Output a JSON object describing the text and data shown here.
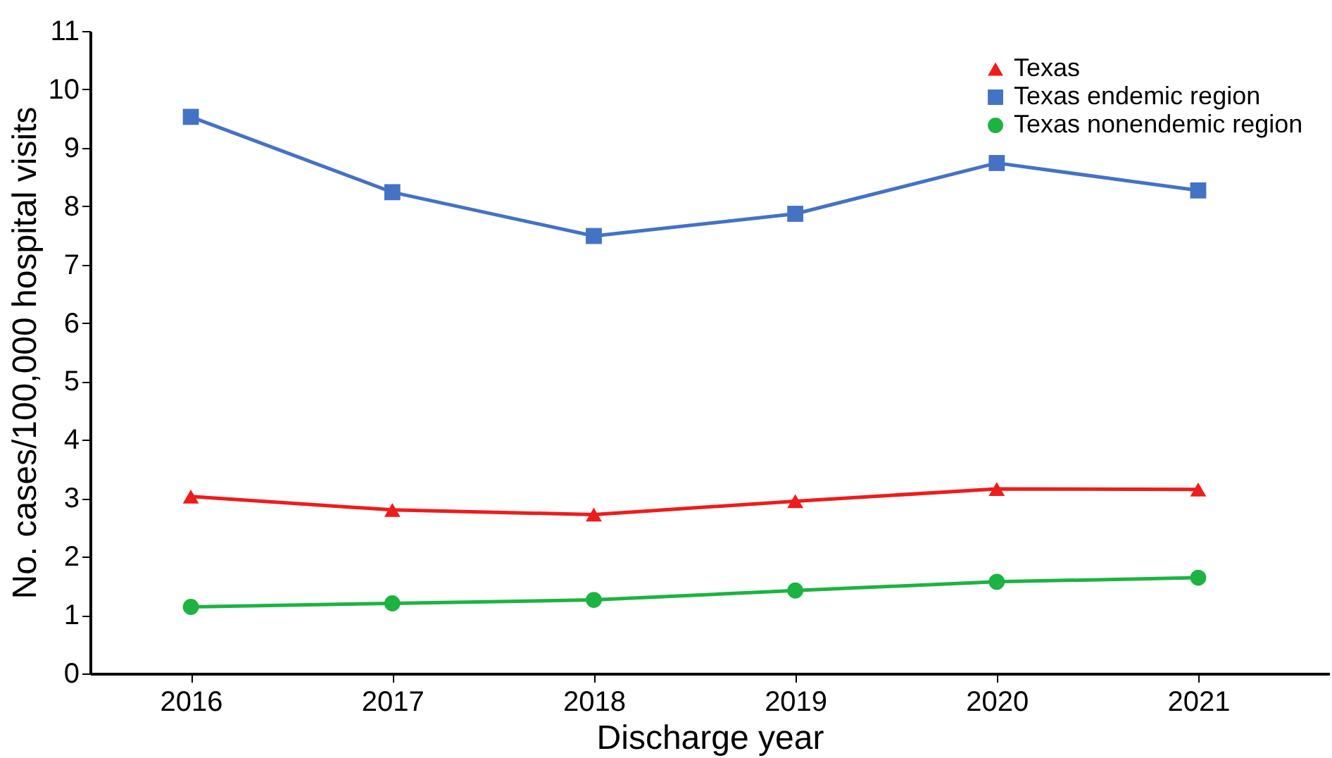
{
  "chart_data": {
    "type": "line",
    "xlabel": "Discharge year",
    "ylabel": "No. cases/100,000 hospital visits",
    "categories": [
      "2016",
      "2017",
      "2018",
      "2019",
      "2020",
      "2021"
    ],
    "series": [
      {
        "name": "Texas",
        "color": "#ee1c1c",
        "marker": "triangle",
        "values": [
          3.03,
          2.8,
          2.72,
          2.95,
          3.16,
          3.15
        ]
      },
      {
        "name": "Texas endemic region",
        "color": "#4472c4",
        "marker": "square",
        "values": [
          9.53,
          8.24,
          7.49,
          7.87,
          8.74,
          8.27
        ]
      },
      {
        "name": "Texas nonendemic region",
        "color": "#1db342",
        "marker": "circle",
        "values": [
          1.14,
          1.2,
          1.26,
          1.42,
          1.57,
          1.64
        ]
      }
    ],
    "ylim": [
      0,
      11
    ],
    "yticks": [
      0,
      1,
      2,
      3,
      4,
      5,
      6,
      7,
      8,
      9,
      10,
      11
    ],
    "grid": false,
    "legend": "top right",
    "line_style": "solid"
  }
}
